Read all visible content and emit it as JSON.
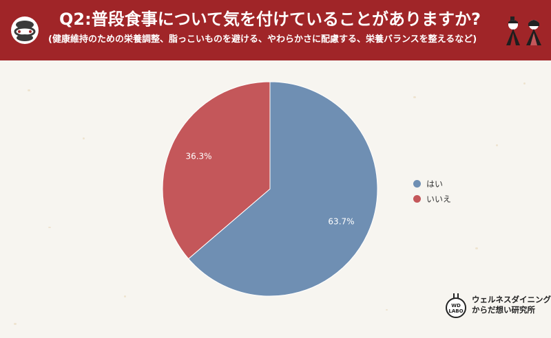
{
  "header": {
    "title": "Q2:普段食事について気を付けていることがありますか?",
    "subtitle": "(健康維持のための栄養調整、脂っこいものを避ける、やわらかさに配慮する、栄養バランスを整えるなど)"
  },
  "colors": {
    "header_bg": "#a02528",
    "hai": "#6f8fb3",
    "iie": "#c4575a"
  },
  "chart_data": {
    "type": "pie",
    "title": "",
    "series": [
      {
        "name": "はい",
        "value": 63.7,
        "label": "63.7%",
        "color": "#6f8fb3"
      },
      {
        "name": "いいえ",
        "value": 36.3,
        "label": "36.3%",
        "color": "#c4575a"
      }
    ],
    "start": "12 o'clock",
    "direction": "clockwise",
    "legend_position": "right"
  },
  "legend": [
    {
      "label": "はい",
      "color": "#6f8fb3"
    },
    {
      "label": "いいえ",
      "color": "#c4575a"
    }
  ],
  "brand": {
    "mark": "WD LABO",
    "line1": "ウェルネスダイニング",
    "line2": "からだ想い研究所"
  },
  "icons": [
    "shimenawa-icon",
    "hina-dolls-icon",
    "brand-logo-icon"
  ]
}
